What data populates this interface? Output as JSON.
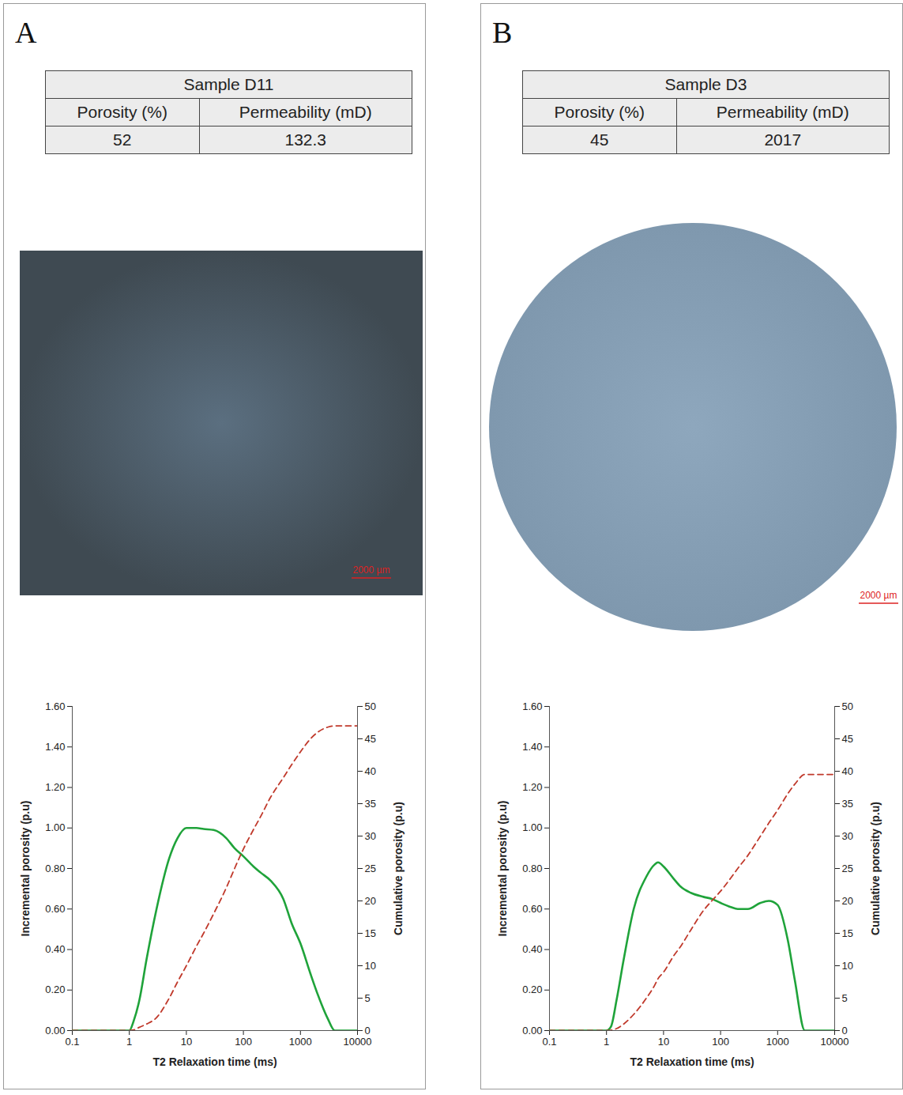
{
  "panels": [
    {
      "letter": "A",
      "table": {
        "title": "Sample D11",
        "header": [
          "Porosity (%)",
          "Permeability (mD)"
        ],
        "rows": [
          [
            "52",
            "132.3"
          ]
        ]
      },
      "scale_bar": "2000 µm"
    },
    {
      "letter": "B",
      "table": {
        "title": "Sample D3",
        "header": [
          "Porosity (%)",
          "Permeability (mD)"
        ],
        "rows": [
          [
            "45",
            "2017"
          ]
        ]
      },
      "scale_bar": "2000 µm"
    }
  ],
  "chart_data": [
    {
      "type": "line",
      "x_label": "T2 Relaxation time (ms)",
      "y_label": "Incremental porosity (p.u)",
      "y2_label": "Cumulative porosity (p.u)",
      "log": "x",
      "x": [
        0.1,
        1,
        1.2,
        1.5,
        2,
        3,
        5,
        7,
        10,
        15,
        20,
        30,
        50,
        70,
        100,
        150,
        200,
        300,
        500,
        700,
        1000,
        1500,
        2000,
        3000,
        4000,
        10000
      ],
      "series": [
        {
          "name": "Incremental porosity (p.u)",
          "color": "#1fa33a",
          "line_style": "solid",
          "values": [
            0,
            0,
            0.05,
            0.15,
            0.35,
            0.6,
            0.85,
            0.95,
            1.0,
            1.0,
            0.995,
            0.99,
            0.95,
            0.9,
            0.86,
            0.81,
            0.78,
            0.74,
            0.65,
            0.53,
            0.43,
            0.28,
            0.18,
            0.06,
            0,
            0
          ]
        },
        {
          "name": "Cumulative porosity (p.u)",
          "color": "#c0392b",
          "line_style": "dashed",
          "axis": "y2",
          "values": [
            0,
            0,
            0.1,
            0.5,
            1,
            2,
            5,
            7.5,
            10,
            13,
            15,
            18,
            22,
            25,
            28,
            31,
            33,
            36,
            39,
            41,
            43,
            45,
            46,
            46.8,
            47,
            47
          ]
        }
      ],
      "xlim": [
        0.1,
        10000
      ],
      "xticks": [
        0.1,
        1,
        10,
        100,
        1000,
        10000
      ],
      "ylim": [
        0,
        1.6
      ],
      "yticks": [
        {
          "value": 0,
          "label": "0.00"
        },
        {
          "value": 0.2,
          "label": "0.20"
        },
        {
          "value": 0.4,
          "label": "0.40"
        },
        {
          "value": 0.6,
          "label": "0.60"
        },
        {
          "value": 0.8,
          "label": "0.80"
        },
        {
          "value": 1.0,
          "label": "1.00"
        },
        {
          "value": 1.2,
          "label": "1.20"
        },
        {
          "value": 1.4,
          "label": "1.40"
        },
        {
          "value": 1.6,
          "label": "1.60"
        }
      ],
      "y2lim": [
        0,
        50
      ],
      "y2ticks": [
        0,
        5,
        10,
        15,
        20,
        25,
        30,
        35,
        40,
        45,
        50
      ],
      "grid": false
    },
    {
      "type": "line",
      "x_label": "T2 Relaxation time (ms)",
      "y_label": "Incremental porosity (p.u)",
      "y2_label": "Cumulative porosity (p.u)",
      "log": "x",
      "x": [
        0.1,
        1,
        1.2,
        1.5,
        2,
        3,
        5,
        7,
        8,
        10,
        15,
        20,
        30,
        50,
        70,
        100,
        150,
        200,
        300,
        500,
        700,
        1000,
        1500,
        2000,
        3000,
        10000
      ],
      "series": [
        {
          "name": "Incremental porosity (p.u)",
          "color": "#1fa33a",
          "line_style": "solid",
          "values": [
            0,
            0,
            0.02,
            0.15,
            0.35,
            0.6,
            0.76,
            0.82,
            0.83,
            0.81,
            0.75,
            0.71,
            0.68,
            0.66,
            0.65,
            0.63,
            0.61,
            0.6,
            0.6,
            0.63,
            0.64,
            0.62,
            0.45,
            0.25,
            0,
            0
          ]
        },
        {
          "name": "Cumulative porosity (p.u)",
          "color": "#c0392b",
          "line_style": "dashed",
          "axis": "y2",
          "values": [
            0,
            0,
            0.05,
            0.3,
            1,
            2.5,
            5,
            7,
            8,
            9,
            11.5,
            13,
            15.5,
            18.5,
            20,
            21.5,
            23.5,
            25,
            27,
            30,
            32,
            34,
            36.5,
            38,
            39.5,
            39.5
          ]
        }
      ],
      "xlim": [
        0.1,
        10000
      ],
      "xticks": [
        0.1,
        1,
        10,
        100,
        1000,
        10000
      ],
      "ylim": [
        0,
        1.6
      ],
      "yticks": [
        {
          "value": 0,
          "label": "0.00"
        },
        {
          "value": 0.2,
          "label": "0.20"
        },
        {
          "value": 0.4,
          "label": "0.40"
        },
        {
          "value": 0.6,
          "label": "0.60"
        },
        {
          "value": 0.8,
          "label": "0.80"
        },
        {
          "value": 1.0,
          "label": "1.00"
        },
        {
          "value": 1.2,
          "label": "1.20"
        },
        {
          "value": 1.4,
          "label": "1.40"
        },
        {
          "value": 1.6,
          "label": "1.60"
        }
      ],
      "y2lim": [
        0,
        50
      ],
      "y2ticks": [
        0,
        5,
        10,
        15,
        20,
        25,
        30,
        35,
        40,
        45,
        50
      ],
      "grid": false
    }
  ]
}
